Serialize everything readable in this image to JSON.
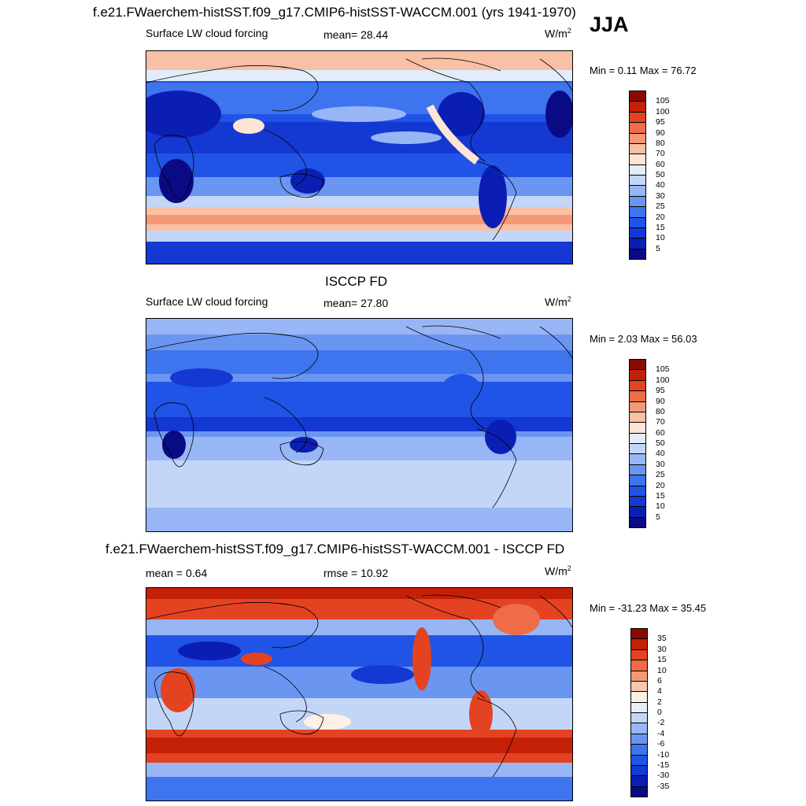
{
  "season": "JJA",
  "panels": [
    {
      "title": "f.e21.FWaerchem-histSST.f09_g17.CMIP6-histSST-WACCM.001 (yrs 1941-1970)",
      "variable": "Surface LW cloud forcing",
      "stat": "mean=  28.44",
      "units": "W/m",
      "units_sup": "2",
      "minmax": "Min =   0.11 Max =  76.72",
      "palette": "abs",
      "colorbar_labels": [
        "105",
        "100",
        "95",
        "90",
        "80",
        "70",
        "60",
        "50",
        "40",
        "30",
        "25",
        "20",
        "15",
        "10",
        "5"
      ]
    },
    {
      "title": "ISCCP FD",
      "variable": "Surface LW cloud forcing",
      "stat": "mean=  27.80",
      "units": "W/m",
      "units_sup": "2",
      "minmax": "Min =   2.03 Max =  56.03",
      "palette": "abs",
      "colorbar_labels": [
        "105",
        "100",
        "95",
        "90",
        "80",
        "70",
        "60",
        "50",
        "40",
        "30",
        "25",
        "20",
        "15",
        "10",
        "5"
      ]
    },
    {
      "title": "f.e21.FWaerchem-histSST.f09_g17.CMIP6-histSST-WACCM.001 - ISCCP FD",
      "variable": "mean =   0.64",
      "stat": "rmse =  10.92",
      "units": "W/m",
      "units_sup": "2",
      "minmax": "Min = -31.23 Max =  35.45",
      "palette": "diff",
      "colorbar_labels": [
        "35",
        "30",
        "15",
        "10",
        "6",
        "4",
        "2",
        "0",
        "-2",
        "-4",
        "-6",
        "-10",
        "-15",
        "-30",
        "-35"
      ]
    }
  ],
  "colors": {
    "abs": [
      "#0a0a84",
      "#0b1eb4",
      "#1438d2",
      "#2054e6",
      "#3e74ee",
      "#6a96f2",
      "#98b6f5",
      "#c4d6f8",
      "#e2ecfb",
      "#fde4d4",
      "#f8c0a4",
      "#f49878",
      "#ee6c48",
      "#e44322",
      "#c42008",
      "#8a0a02"
    ],
    "diff": [
      "#0a0a84",
      "#0b1eb4",
      "#1438d2",
      "#2054e6",
      "#3e74ee",
      "#6a96f2",
      "#98b6f5",
      "#c4d6f8",
      "#e6eefb",
      "#fdf0e4",
      "#f8c8a8",
      "#f49878",
      "#ee6c48",
      "#e44322",
      "#c42008",
      "#8a0a02"
    ]
  }
}
